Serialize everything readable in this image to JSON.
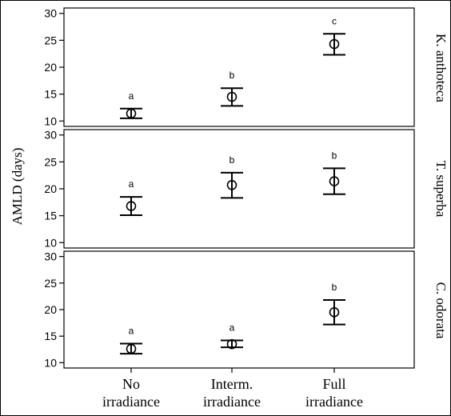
{
  "chart_data": {
    "type": "errorbar",
    "ylabel": "AMLD (days)",
    "categories": [
      [
        "No",
        "irradiance"
      ],
      [
        "Interm.",
        "irradiance"
      ],
      [
        "Full",
        "irradiance"
      ]
    ],
    "panels": [
      {
        "species": "K. anthoteca",
        "ylim": [
          9,
          31
        ],
        "yticks": [
          10,
          15,
          20,
          25,
          30
        ],
        "points": [
          {
            "mean": 11.4,
            "low": 10.5,
            "high": 12.3,
            "letter": "a"
          },
          {
            "mean": 14.5,
            "low": 12.8,
            "high": 16.1,
            "letter": "b"
          },
          {
            "mean": 24.3,
            "low": 22.3,
            "high": 26.2,
            "letter": "c"
          }
        ]
      },
      {
        "species": "T. superba",
        "ylim": [
          9,
          31
        ],
        "yticks": [
          10,
          15,
          20,
          25,
          30
        ],
        "points": [
          {
            "mean": 16.8,
            "low": 15.1,
            "high": 18.5,
            "letter": "a"
          },
          {
            "mean": 20.7,
            "low": 18.3,
            "high": 23.0,
            "letter": "b"
          },
          {
            "mean": 21.4,
            "low": 19.0,
            "high": 23.8,
            "letter": "b"
          }
        ]
      },
      {
        "species": "C. odorata",
        "ylim": [
          9,
          31
        ],
        "yticks": [
          10,
          15,
          20,
          25,
          30
        ],
        "points": [
          {
            "mean": 12.6,
            "low": 11.7,
            "high": 13.6,
            "letter": "a"
          },
          {
            "mean": 13.5,
            "low": 12.9,
            "high": 14.2,
            "letter": "a"
          },
          {
            "mean": 19.5,
            "low": 17.2,
            "high": 21.8,
            "letter": "b"
          }
        ]
      }
    ]
  }
}
